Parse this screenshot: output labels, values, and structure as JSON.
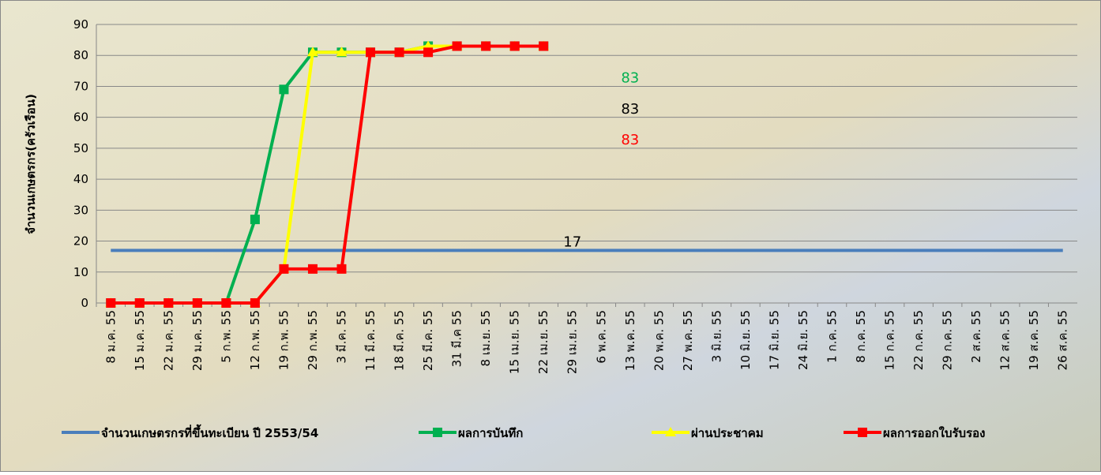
{
  "chart_data": {
    "type": "line",
    "y_label": "จำนวนเกษตรกร(ครัวเรือน)",
    "categories": [
      "8 ม.ค. 55",
      "15 ม.ค. 55",
      "22 ม.ค. 55",
      "29 ม.ค. 55",
      "5 ก.พ. 55",
      "12 ก.พ. 55",
      "19 ก.พ. 55",
      "29 ก.พ. 55",
      "3 มี.ค. 55",
      "11 มี.ค. 55",
      "18 มี.ค. 55",
      "25 มี.ค. 55",
      "31 มี.ค 55",
      "8 เม.ย. 55",
      "15 เม.ย. 55",
      "22 เม.ย. 55",
      "29 เม.ย. 55",
      "6 พ.ค. 55",
      "13 พ.ค. 55",
      "20 พ.ค. 55",
      "27 พ.ค. 55",
      "3 มิ.ย. 55",
      "10 มิ.ย. 55",
      "17 มิ.ย. 55",
      "24 มิ.ย. 55",
      "1 ก.ค. 55",
      "8 ก.ค. 55",
      "15 ก.ค. 55",
      "22 ก.ค. 55",
      "29 ก.ค. 55",
      "2 ส.ค. 55",
      "12 ส.ค. 55",
      "19 ส.ค. 55",
      "26 ส.ค. 55"
    ],
    "series": [
      {
        "name": "จำนวนเกษตรกรที่ขึ้นทะเบียน ปี 2553/54",
        "color": "#4a7ebb",
        "marker": "none",
        "values": [
          17,
          17,
          17,
          17,
          17,
          17,
          17,
          17,
          17,
          17,
          17,
          17,
          17,
          17,
          17,
          17,
          17,
          17,
          17,
          17,
          17,
          17,
          17,
          17,
          17,
          17,
          17,
          17,
          17,
          17,
          17,
          17,
          17,
          17
        ]
      },
      {
        "name": "ผลการบันทึก",
        "color": "#00b050",
        "marker": "square",
        "values": [
          0,
          0,
          0,
          0,
          0,
          27,
          69,
          81,
          81,
          81,
          81,
          83,
          83,
          83,
          83,
          83,
          null,
          null,
          null,
          null,
          null,
          null,
          null,
          null,
          null,
          null,
          null,
          null,
          null,
          null,
          null,
          null,
          null,
          null
        ]
      },
      {
        "name": "ผ่านประชาคม",
        "color": "#ffff00",
        "marker": "triangle",
        "values": [
          0,
          0,
          0,
          0,
          0,
          0,
          11,
          81,
          81,
          81,
          81,
          83,
          83,
          83,
          83,
          83,
          null,
          null,
          null,
          null,
          null,
          null,
          null,
          null,
          null,
          null,
          null,
          null,
          null,
          null,
          null,
          null,
          null,
          null
        ]
      },
      {
        "name": "ผลการออกใบรับรอง",
        "color": "#ff0000",
        "marker": "square",
        "values": [
          0,
          0,
          0,
          0,
          0,
          0,
          11,
          11,
          11,
          81,
          81,
          81,
          83,
          83,
          83,
          83,
          null,
          null,
          null,
          null,
          null,
          null,
          null,
          null,
          null,
          null,
          null,
          null,
          null,
          null,
          null,
          null,
          null,
          null
        ]
      }
    ],
    "annotations": [
      {
        "text": "83",
        "color": "#00b050"
      },
      {
        "text": "83",
        "color": "#000000"
      },
      {
        "text": "83",
        "color": "#ff0000"
      },
      {
        "text": "17",
        "color": "#000000"
      }
    ],
    "ylim": [
      0,
      90
    ],
    "yticks": [
      0,
      10,
      20,
      30,
      40,
      50,
      60,
      70,
      80,
      90
    ],
    "grid": true,
    "legend": "bottom"
  }
}
